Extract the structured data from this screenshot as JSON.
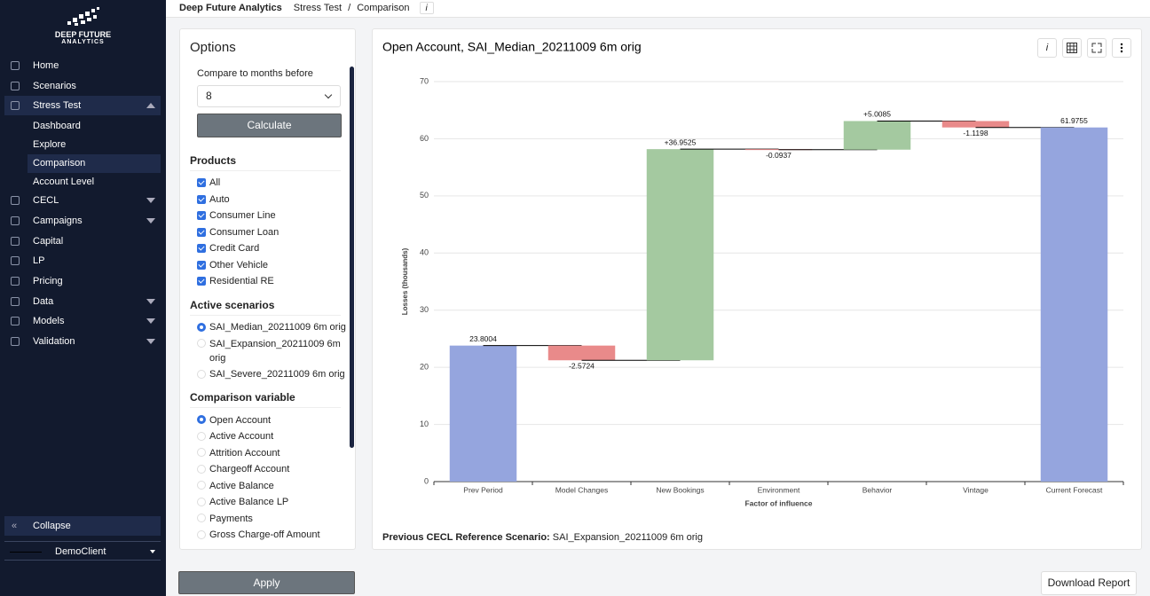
{
  "header": {
    "brand": "Deep Future Analytics",
    "breadcrumb": [
      "Stress Test",
      "Comparison"
    ],
    "separator": "/",
    "info": "i"
  },
  "sidebar": {
    "logo": [
      "DEEP FUTURE",
      "ANALYTICS"
    ],
    "nav": [
      {
        "label": "Home"
      },
      {
        "label": "Scenarios"
      },
      {
        "label": "Stress Test",
        "submenu": true,
        "open": true,
        "children": [
          "Dashboard",
          "Explore",
          "Comparison",
          "Account Level"
        ],
        "active_child": "Comparison"
      },
      {
        "label": "CECL",
        "submenu": true
      },
      {
        "label": "Campaigns",
        "submenu": true
      },
      {
        "label": "Capital"
      },
      {
        "label": "LP"
      },
      {
        "label": "Pricing"
      },
      {
        "label": "Data",
        "submenu": true
      },
      {
        "label": "Models",
        "submenu": true
      },
      {
        "label": "Validation",
        "submenu": true
      }
    ],
    "collapse": "Collapse",
    "client": "DemoClient"
  },
  "options": {
    "title": "Options",
    "compare_label": "Compare to months before",
    "compare_value": "8",
    "calculate": "Calculate",
    "products": {
      "title": "Products",
      "items": [
        "All",
        "Auto",
        "Consumer Line",
        "Consumer Loan",
        "Credit Card",
        "Other Vehicle",
        "Residential RE"
      ]
    },
    "scenarios": {
      "title": "Active scenarios",
      "items": [
        "SAI_Median_20211009 6m orig",
        "SAI_Expansion_20211009 6m orig",
        "SAI_Severe_20211009 6m orig"
      ],
      "selected": "SAI_Median_20211009 6m orig"
    },
    "variables": {
      "title": "Comparison variable",
      "items": [
        "Open Account",
        "Active Account",
        "Attrition Account",
        "Chargeoff Account",
        "Active Balance",
        "Active Balance LP",
        "Payments",
        "Gross Charge-off Amount"
      ],
      "selected": "Open Account"
    },
    "apply": "Apply"
  },
  "chart_panel": {
    "toolbar_info": "i",
    "reference_label": "Previous CECL Reference Scenario:",
    "reference_value": "SAI_Expansion_20211009 6m orig",
    "download": "Download Report"
  },
  "chart_data": {
    "type": "waterfall",
    "title": "Open Account, SAI_Median_20211009 6m orig",
    "x_label": "Factor of influence",
    "y_label": "Losses (thousands)",
    "categories": [
      "Prev Period",
      "Model Changes",
      "New Bookings",
      "Environment",
      "Behavior",
      "Vintage",
      "Current Forecast"
    ],
    "values": [
      23.8004,
      -2.5724,
      36.9525,
      -0.0937,
      5.0085,
      -1.1198,
      61.9755
    ],
    "value_labels": [
      "23.8004",
      "-2.5724",
      "+36.9525",
      "-0.0937",
      "+5.0085",
      "-1.1198",
      "61.9755"
    ],
    "measure": [
      "total",
      "relative",
      "relative",
      "relative",
      "relative",
      "relative",
      "total"
    ],
    "total_color": "#95a5de",
    "increase_color": "#a4c9a0",
    "decrease_color": "#e98a8a",
    "ylim": [
      0,
      70
    ],
    "yticks": [
      0,
      10,
      20,
      30,
      40,
      50,
      60,
      70
    ],
    "grid": true
  }
}
